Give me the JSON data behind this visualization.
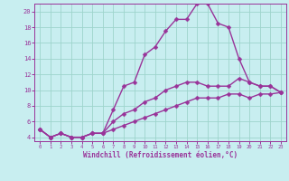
{
  "xlabel": "Windchill (Refroidissement éolien,°C)",
  "bg_color": "#c8eef0",
  "grid_color": "#9dd4cc",
  "line_color": "#993399",
  "xlim": [
    -0.5,
    23.5
  ],
  "ylim": [
    3.5,
    21.0
  ],
  "yticks": [
    4,
    6,
    8,
    10,
    12,
    14,
    16,
    18,
    20
  ],
  "xticks": [
    0,
    1,
    2,
    3,
    4,
    5,
    6,
    7,
    8,
    9,
    10,
    11,
    12,
    13,
    14,
    15,
    16,
    17,
    18,
    19,
    20,
    21,
    22,
    23
  ],
  "series1_x": [
    0,
    1,
    2,
    3,
    4,
    5,
    6,
    7,
    8,
    9,
    10,
    11,
    12,
    13,
    14,
    15,
    16,
    17,
    18,
    19,
    20,
    21,
    22,
    23
  ],
  "series1_y": [
    5.0,
    4.0,
    4.5,
    4.0,
    4.0,
    4.5,
    4.5,
    5.0,
    5.5,
    6.0,
    6.5,
    7.0,
    7.5,
    8.0,
    8.5,
    9.0,
    9.0,
    9.0,
    9.5,
    9.5,
    9.0,
    9.5,
    9.5,
    9.7
  ],
  "series2_x": [
    0,
    1,
    2,
    3,
    4,
    5,
    6,
    7,
    8,
    9,
    10,
    11,
    12,
    13,
    14,
    15,
    16,
    17,
    18,
    19,
    20,
    21,
    22,
    23
  ],
  "series2_y": [
    5.0,
    4.0,
    4.5,
    4.0,
    4.0,
    4.5,
    4.5,
    6.0,
    7.0,
    7.5,
    8.5,
    9.0,
    10.0,
    10.5,
    11.0,
    11.0,
    10.5,
    10.5,
    10.5,
    11.5,
    11.0,
    10.5,
    10.5,
    9.7
  ],
  "series3_x": [
    0,
    1,
    2,
    3,
    4,
    5,
    6,
    7,
    8,
    9,
    10,
    11,
    12,
    13,
    14,
    15,
    16,
    17,
    18,
    19,
    20,
    21,
    22,
    23
  ],
  "series3_y": [
    5.0,
    4.0,
    4.5,
    4.0,
    4.0,
    4.5,
    4.5,
    7.5,
    10.5,
    11.0,
    14.5,
    15.5,
    17.5,
    19.0,
    19.0,
    21.0,
    21.0,
    18.5,
    18.0,
    14.0,
    11.0,
    10.5,
    10.5,
    9.7
  ],
  "marker": "D",
  "markersize": 2.5,
  "linewidth": 1.0
}
